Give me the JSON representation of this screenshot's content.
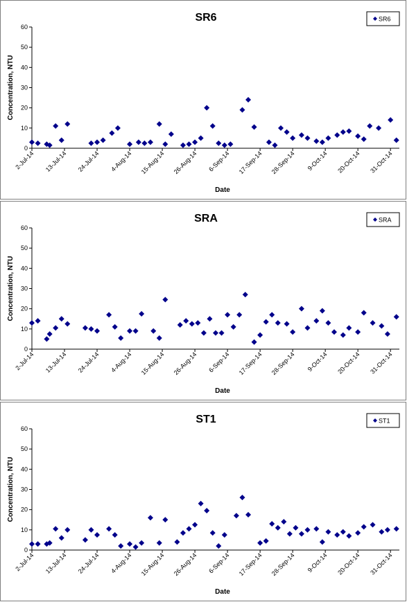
{
  "chart_data": [
    {
      "type": "scatter",
      "title": "SR6",
      "xlabel": "Date",
      "ylabel": "Concentration, NTU",
      "ylim": [
        0,
        60
      ],
      "yticks": [
        0,
        10,
        20,
        30,
        40,
        50,
        60
      ],
      "xlim": [
        "2014-07-02",
        "2014-11-03"
      ],
      "xticks": [
        "2-Jul-14",
        "13-Jul-14",
        "24-Jul-14",
        "4-Aug-14",
        "15-Aug-14",
        "26-Aug-14",
        "6-Sep-14",
        "17-Sep-14",
        "28-Sep-14",
        "9-Oct-14",
        "20-Oct-14",
        "31-Oct-14"
      ],
      "grid": false,
      "legend": "top-right",
      "marker_color": "#00008b",
      "series": [
        {
          "name": "SR6",
          "x": [
            "2014-07-02",
            "2014-07-04",
            "2014-07-07",
            "2014-07-08",
            "2014-07-10",
            "2014-07-12",
            "2014-07-14",
            "2014-07-22",
            "2014-07-24",
            "2014-07-26",
            "2014-07-29",
            "2014-07-31",
            "2014-08-04",
            "2014-08-07",
            "2014-08-09",
            "2014-08-11",
            "2014-08-14",
            "2014-08-16",
            "2014-08-18",
            "2014-08-22",
            "2014-08-24",
            "2014-08-26",
            "2014-08-28",
            "2014-08-30",
            "2014-09-01",
            "2014-09-03",
            "2014-09-05",
            "2014-09-07",
            "2014-09-11",
            "2014-09-13",
            "2014-09-15",
            "2014-09-20",
            "2014-09-22",
            "2014-09-24",
            "2014-09-26",
            "2014-09-28",
            "2014-10-01",
            "2014-10-03",
            "2014-10-06",
            "2014-10-08",
            "2014-10-10",
            "2014-10-13",
            "2014-10-15",
            "2014-10-17",
            "2014-10-20",
            "2014-10-22",
            "2014-10-24",
            "2014-10-27",
            "2014-10-31",
            "2014-11-02"
          ],
          "y": [
            3,
            2.5,
            2,
            1.5,
            11,
            4,
            12,
            2.5,
            3,
            4,
            7.5,
            10,
            2,
            3,
            2.5,
            3,
            12,
            2,
            7,
            1.5,
            2,
            3,
            5,
            20,
            11,
            2.5,
            1.5,
            2,
            19,
            24,
            10.5,
            3,
            1.5,
            10,
            8,
            5,
            6.5,
            5,
            3.5,
            3,
            5,
            6.5,
            8,
            8.5,
            6,
            4.5,
            11,
            10,
            14,
            4
          ]
        }
      ]
    },
    {
      "type": "scatter",
      "title": "SRA",
      "xlabel": "Date",
      "ylabel": "Concentration, NTU",
      "ylim": [
        0,
        60
      ],
      "yticks": [
        0,
        10,
        20,
        30,
        40,
        50,
        60
      ],
      "xlim": [
        "2014-07-02",
        "2014-11-03"
      ],
      "xticks": [
        "2-Jul-14",
        "13-Jul-14",
        "24-Jul-14",
        "4-Aug-14",
        "15-Aug-14",
        "26-Aug-14",
        "6-Sep-14",
        "17-Sep-14",
        "28-Sep-14",
        "9-Oct-14",
        "20-Oct-14",
        "31-Oct-14"
      ],
      "grid": false,
      "legend": "top-right",
      "marker_color": "#00008b",
      "series": [
        {
          "name": "SRA",
          "x": [
            "2014-07-02",
            "2014-07-04",
            "2014-07-07",
            "2014-07-08",
            "2014-07-10",
            "2014-07-12",
            "2014-07-14",
            "2014-07-20",
            "2014-07-22",
            "2014-07-24",
            "2014-07-28",
            "2014-07-30",
            "2014-08-01",
            "2014-08-04",
            "2014-08-06",
            "2014-08-08",
            "2014-08-12",
            "2014-08-14",
            "2014-08-16",
            "2014-08-21",
            "2014-08-23",
            "2014-08-25",
            "2014-08-27",
            "2014-08-29",
            "2014-08-31",
            "2014-09-02",
            "2014-09-04",
            "2014-09-06",
            "2014-09-08",
            "2014-09-10",
            "2014-09-12",
            "2014-09-15",
            "2014-09-17",
            "2014-09-19",
            "2014-09-21",
            "2014-09-23",
            "2014-09-26",
            "2014-09-28",
            "2014-10-01",
            "2014-10-03",
            "2014-10-06",
            "2014-10-08",
            "2014-10-10",
            "2014-10-12",
            "2014-10-15",
            "2014-10-17",
            "2014-10-20",
            "2014-10-22",
            "2014-10-25",
            "2014-10-28",
            "2014-10-30",
            "2014-11-02"
          ],
          "y": [
            13,
            14,
            5,
            7.5,
            10.5,
            15,
            12.5,
            10.5,
            10,
            9,
            17,
            11,
            5.5,
            9,
            9,
            17.5,
            9,
            5.5,
            24.5,
            12,
            14,
            12.5,
            13,
            8,
            15,
            8,
            8,
            17,
            11,
            17,
            27,
            3.5,
            7,
            13.5,
            17,
            13,
            12.5,
            8.5,
            20,
            10.5,
            14,
            19,
            13,
            8.5,
            7,
            10.5,
            8.5,
            18,
            13,
            11.5,
            7.5,
            16
          ]
        }
      ]
    },
    {
      "type": "scatter",
      "title": "ST1",
      "xlabel": "Date",
      "ylabel": "Concentration, NTU",
      "ylim": [
        0,
        60
      ],
      "yticks": [
        0,
        10,
        20,
        30,
        40,
        50,
        60
      ],
      "xlim": [
        "2014-07-02",
        "2014-11-03"
      ],
      "xticks": [
        "2-Jul-14",
        "13-Jul-14",
        "24-Jul-14",
        "4-Aug-14",
        "15-Aug-14",
        "26-Aug-14",
        "6-Sep-14",
        "17-Sep-14",
        "28-Sep-14",
        "9-Oct-14",
        "20-Oct-14",
        "31-Oct-14"
      ],
      "grid": false,
      "legend": "top-right",
      "marker_color": "#00008b",
      "series": [
        {
          "name": "ST1",
          "x": [
            "2014-07-02",
            "2014-07-04",
            "2014-07-07",
            "2014-07-08",
            "2014-07-10",
            "2014-07-12",
            "2014-07-14",
            "2014-07-20",
            "2014-07-22",
            "2014-07-24",
            "2014-07-28",
            "2014-07-30",
            "2014-08-01",
            "2014-08-04",
            "2014-08-06",
            "2014-08-08",
            "2014-08-11",
            "2014-08-14",
            "2014-08-16",
            "2014-08-20",
            "2014-08-22",
            "2014-08-24",
            "2014-08-26",
            "2014-08-28",
            "2014-08-30",
            "2014-09-01",
            "2014-09-03",
            "2014-09-05",
            "2014-09-09",
            "2014-09-11",
            "2014-09-13",
            "2014-09-17",
            "2014-09-19",
            "2014-09-21",
            "2014-09-23",
            "2014-09-25",
            "2014-09-27",
            "2014-09-29",
            "2014-10-01",
            "2014-10-03",
            "2014-10-06",
            "2014-10-08",
            "2014-10-10",
            "2014-10-13",
            "2014-10-15",
            "2014-10-17",
            "2014-10-20",
            "2014-10-22",
            "2014-10-25",
            "2014-10-28",
            "2014-10-30",
            "2014-11-02"
          ],
          "y": [
            3,
            3,
            3,
            3.5,
            10.5,
            6,
            10,
            5,
            10,
            7.5,
            10.5,
            7.5,
            2,
            3,
            1.5,
            3.5,
            16,
            3.5,
            15,
            4,
            8.5,
            10.5,
            12.5,
            23,
            19.5,
            8.5,
            2,
            7.5,
            17,
            26,
            17.5,
            3.5,
            4.5,
            13,
            11,
            14,
            8,
            11,
            8,
            10,
            10.5,
            4,
            9,
            7.5,
            9,
            7,
            8.5,
            11.5,
            12.5,
            9,
            10,
            10.5
          ]
        }
      ]
    }
  ]
}
